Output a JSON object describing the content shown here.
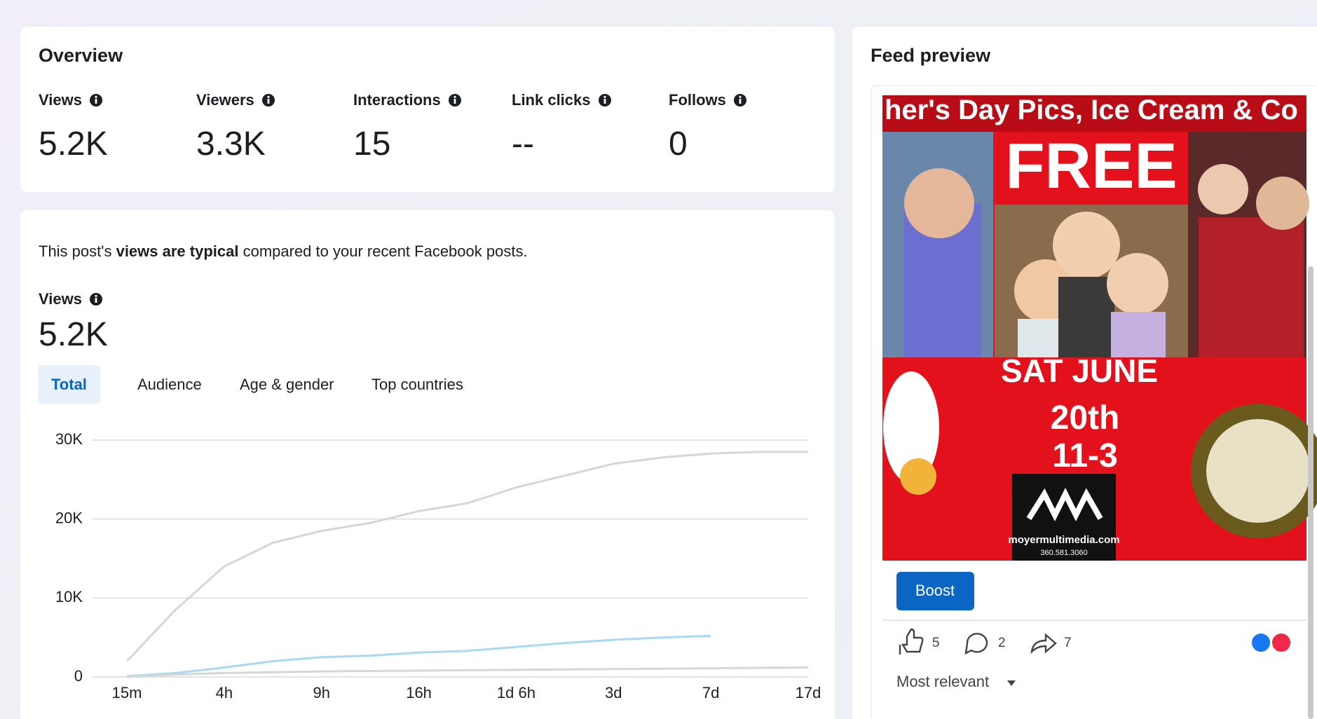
{
  "overview": {
    "title": "Overview",
    "metrics": [
      {
        "label": "Views",
        "value": "5.2K"
      },
      {
        "label": "Viewers",
        "value": "3.3K"
      },
      {
        "label": "Interactions",
        "value": "15"
      },
      {
        "label": "Link clicks",
        "value": "--"
      },
      {
        "label": "Follows",
        "value": "0"
      }
    ]
  },
  "performance": {
    "summary_prefix": "This post's ",
    "summary_bold": "views are typical",
    "summary_suffix": " compared to your recent Facebook posts.",
    "metric_label": "Views",
    "metric_value": "5.2K",
    "tabs": [
      "Total",
      "Audience",
      "Age & gender",
      "Top countries"
    ]
  },
  "chart_data": {
    "type": "line",
    "categories": [
      "15m",
      null,
      "4h",
      null,
      "9h",
      null,
      "16h",
      null,
      "1d 6h",
      null,
      "3d",
      null,
      "7d",
      null,
      "17d"
    ],
    "series": [
      {
        "color": "#d6d6d6",
        "values": [
          2000,
          8500,
          14000,
          17000,
          18500,
          19500,
          21000,
          22000,
          24000,
          25500,
          27000,
          27800,
          28300,
          28500,
          28500
        ]
      },
      {
        "color": "#a9d9f2",
        "values": [
          100,
          500,
          1200,
          2000,
          2500,
          2700,
          3100,
          3300,
          3800,
          4300,
          4700,
          5000,
          5200,
          null,
          null
        ]
      },
      {
        "color": "#d6d6d6",
        "values": [
          0,
          300,
          500,
          600,
          700,
          750,
          800,
          850,
          900,
          950,
          1000,
          1050,
          1100,
          1150,
          1200
        ]
      }
    ],
    "ylim": [
      0,
      30000
    ],
    "yticks": [
      0,
      {
        "value": 10000,
        "label": "10K"
      },
      {
        "value": 20000,
        "label": "20K"
      },
      {
        "value": 30000,
        "label": "30K"
      }
    ],
    "grid": true
  },
  "feed": {
    "title": "Feed preview",
    "poster": {
      "banner": "her's Day Pics, Ice Cream & Co",
      "free": "FREE",
      "date": "SAT JUNE",
      "day": "20th",
      "time": "11-3",
      "site": "moyermultimedia.com",
      "phone": "360.581.3060"
    },
    "button": "Boost",
    "likes": "5",
    "comments": "2",
    "shares": "7",
    "sort": "Most relevant"
  }
}
